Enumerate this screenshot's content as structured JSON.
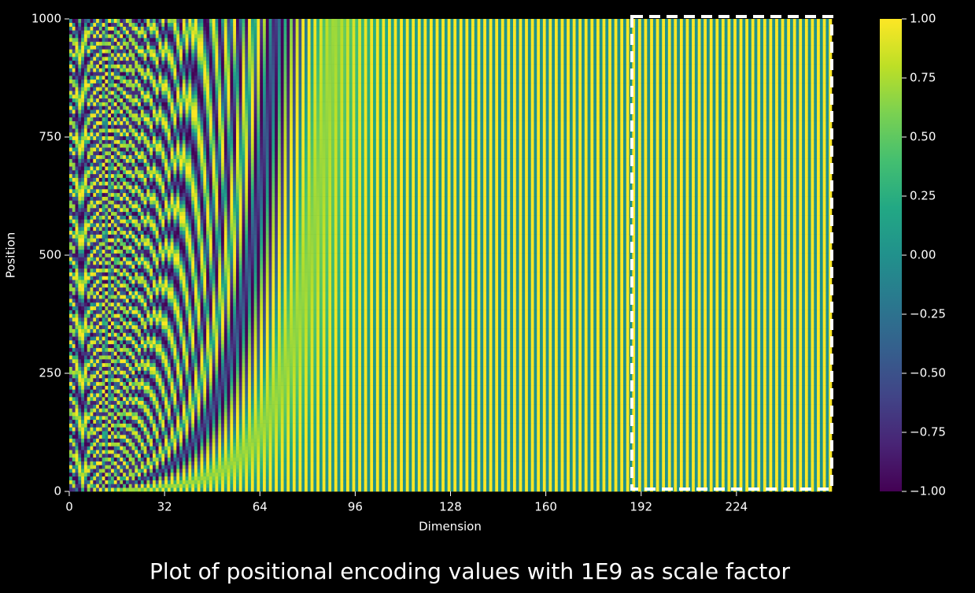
{
  "chart_data": {
    "type": "heatmap",
    "x_label": "Dimension",
    "y_label": "Position",
    "xlim": [
      0,
      256
    ],
    "ylim": [
      0,
      1000
    ],
    "xticks": [
      0,
      32,
      64,
      96,
      128,
      160,
      192,
      224
    ],
    "yticks": [
      0,
      250,
      500,
      750,
      1000
    ],
    "colormap": "viridis",
    "scale_factor": 1000000000,
    "colorbar": {
      "lim": [
        -1,
        1
      ],
      "ticks": [
        {
          "value": -1,
          "label": "−1.00"
        },
        {
          "value": -0.75,
          "label": "−0.75"
        },
        {
          "value": -0.5,
          "label": "−0.50"
        },
        {
          "value": -0.25,
          "label": "−0.25"
        },
        {
          "value": 0,
          "label": "0.00"
        },
        {
          "value": 0.25,
          "label": "0.25"
        },
        {
          "value": 0.5,
          "label": "0.50"
        },
        {
          "value": 0.75,
          "label": "0.75"
        },
        {
          "value": 1,
          "label": "1.00"
        }
      ]
    },
    "caption": "Plot of positional encoding values with 1E9 as scale factor"
  }
}
